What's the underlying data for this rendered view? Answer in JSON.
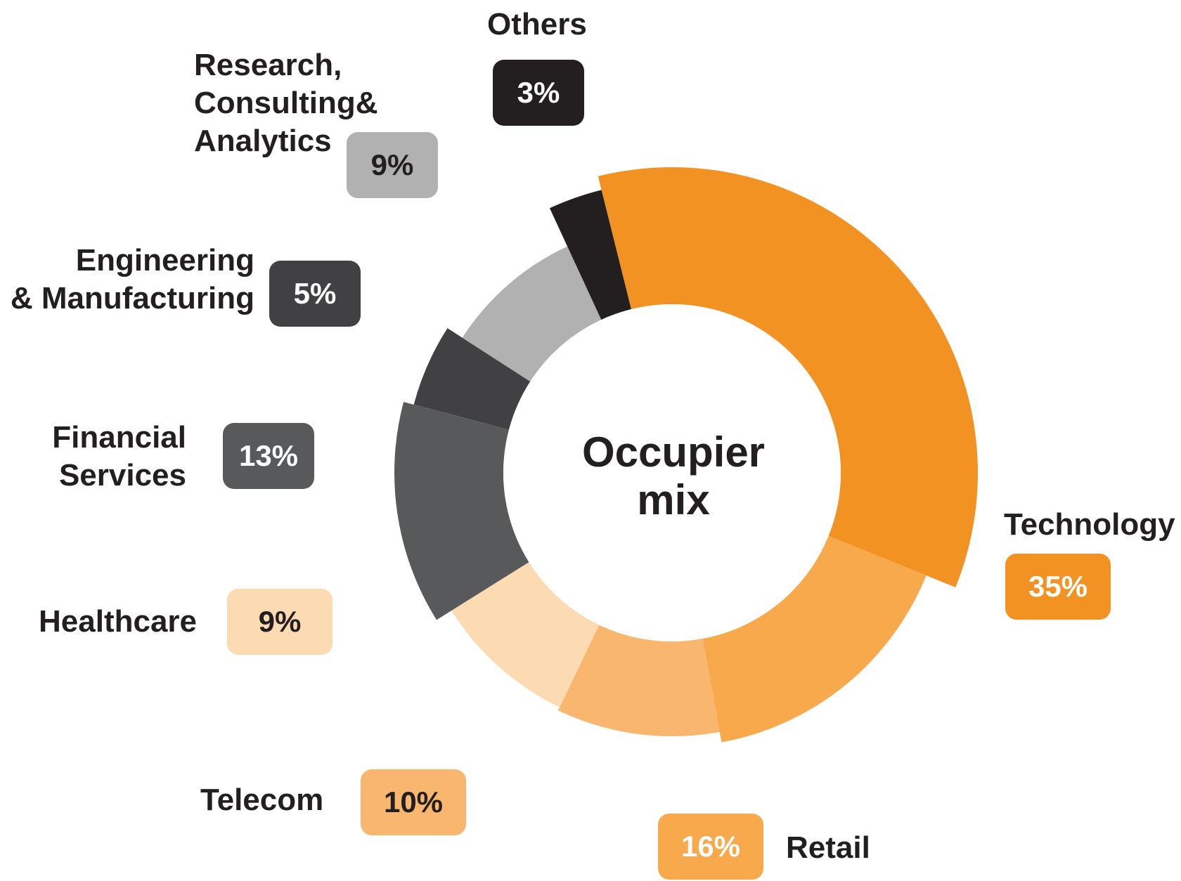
{
  "center_label": "Occupier\nmix",
  "chart_data": {
    "type": "pie",
    "subtype": "rose-donut",
    "title": "",
    "categories": [
      "Technology",
      "Retail",
      "Telecom",
      "Healthcare",
      "Financial Services",
      "Engineering & Manufacturing",
      "Research, Consulting& Analytics",
      "Others"
    ],
    "values": [
      35,
      16,
      10,
      9,
      13,
      5,
      9,
      3
    ],
    "display_labels": [
      "Technology",
      "Retail",
      "Telecom",
      "Healthcare",
      "Financial\nServices",
      "Engineering\n& Manufacturing",
      "Research,\nConsulting&\nAnalytics",
      "Others"
    ],
    "value_labels": [
      "35%",
      "16%",
      "10%",
      "9%",
      "13%",
      "5%",
      "9%",
      "3%"
    ],
    "colors": [
      "#f29222",
      "#f8a94b",
      "#f9b66e",
      "#fcdab2",
      "#58595b",
      "#414042",
      "#b1b1b1",
      "#231f20"
    ],
    "badge_text_colors": [
      "#ffffff",
      "#ffffff",
      "#231f20",
      "#231f20",
      "#ffffff",
      "#ffffff",
      "#231f20",
      "#ffffff"
    ]
  }
}
